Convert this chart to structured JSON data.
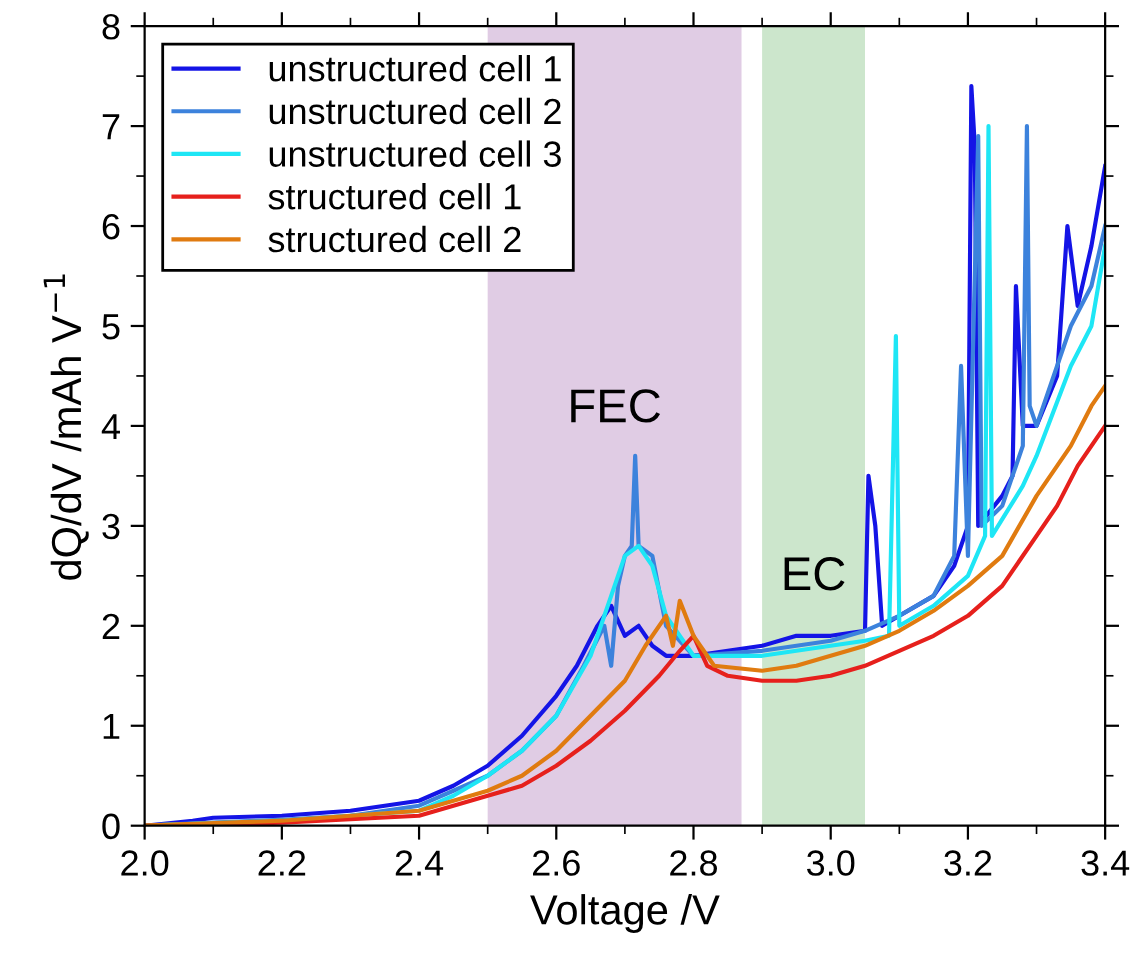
{
  "chart_data": {
    "type": "line",
    "xlabel": "Voltage /V",
    "ylabel": "dQ/dV /mAh V$^{−1}$",
    "xlim": [
      2.0,
      3.4
    ],
    "xticks": [
      {
        "value": 2.0,
        "label": "2.0"
      },
      2.2,
      2.4,
      2.6,
      2.8,
      {
        "value": 3.0,
        "label": "3.0"
      },
      3.2,
      3.4
    ],
    "ylim": [
      0,
      8
    ],
    "yticks": [
      0,
      1,
      2,
      3,
      4,
      5,
      6,
      7,
      8
    ],
    "grid": false,
    "legend": "top left",
    "marker": "none",
    "line_style": "solid",
    "bands": [
      {
        "axis": "x",
        "from": 2.5,
        "to": 2.87,
        "label": "FEC",
        "color": "#e0cce4"
      },
      {
        "axis": "x",
        "from": 2.9,
        "to": 3.05,
        "label": "EC",
        "color": "#cce6cc"
      }
    ],
    "series": [
      {
        "name": "unstructured cell 1",
        "color": "#1414e6",
        "x": [
          2.0,
          2.07,
          2.1,
          2.2,
          2.3,
          2.4,
          2.45,
          2.5,
          2.55,
          2.6,
          2.63,
          2.66,
          2.68,
          2.7,
          2.72,
          2.74,
          2.76,
          2.8,
          2.85,
          2.9,
          2.95,
          3.0,
          3.05,
          3.055,
          3.065,
          3.075,
          3.1,
          3.15,
          3.18,
          3.2,
          3.205,
          3.21,
          3.215,
          3.25,
          3.265,
          3.27,
          3.28,
          3.3,
          3.33,
          3.345,
          3.36,
          3.38,
          3.4
        ],
        "values": [
          0,
          0.05,
          0.08,
          0.1,
          0.15,
          0.25,
          0.4,
          0.6,
          0.9,
          1.3,
          1.6,
          2.0,
          2.2,
          1.9,
          2.0,
          1.8,
          1.7,
          1.7,
          1.75,
          1.8,
          1.9,
          1.9,
          1.95,
          3.5,
          3.0,
          2.0,
          2.1,
          2.3,
          2.6,
          3.0,
          7.4,
          6.8,
          3.0,
          3.3,
          3.5,
          5.4,
          4.0,
          4.0,
          4.5,
          6.0,
          5.2,
          5.8,
          6.6
        ]
      },
      {
        "name": "unstructured cell 2",
        "color": "#3c82dc",
        "x": [
          2.0,
          2.1,
          2.2,
          2.3,
          2.4,
          2.45,
          2.5,
          2.55,
          2.6,
          2.64,
          2.67,
          2.68,
          2.69,
          2.7,
          2.71,
          2.715,
          2.72,
          2.74,
          2.76,
          2.8,
          2.9,
          3.0,
          3.05,
          3.1,
          3.15,
          3.18,
          3.19,
          3.2,
          3.215,
          3.22,
          3.25,
          3.28,
          3.286,
          3.29,
          3.3,
          3.35,
          3.38,
          3.4
        ],
        "values": [
          0,
          0.03,
          0.06,
          0.1,
          0.2,
          0.35,
          0.5,
          0.75,
          1.1,
          1.6,
          2.0,
          1.6,
          2.4,
          2.7,
          2.8,
          3.7,
          2.8,
          2.7,
          2.0,
          1.7,
          1.75,
          1.85,
          1.95,
          2.1,
          2.3,
          2.7,
          4.6,
          2.7,
          6.9,
          3.0,
          3.2,
          3.8,
          7.0,
          4.2,
          4.0,
          5.0,
          5.4,
          6.0
        ]
      },
      {
        "name": "unstructured cell 3",
        "color": "#1ee6f5",
        "x": [
          2.0,
          2.2,
          2.4,
          2.45,
          2.5,
          2.55,
          2.6,
          2.65,
          2.68,
          2.7,
          2.72,
          2.74,
          2.76,
          2.8,
          2.9,
          3.0,
          3.05,
          3.085,
          3.095,
          3.1,
          3.15,
          3.2,
          3.225,
          3.23,
          3.235,
          3.28,
          3.3,
          3.35,
          3.38,
          3.4
        ],
        "values": [
          0,
          0.05,
          0.15,
          0.3,
          0.5,
          0.75,
          1.1,
          1.7,
          2.3,
          2.7,
          2.8,
          2.6,
          2.1,
          1.7,
          1.7,
          1.8,
          1.85,
          1.9,
          4.9,
          2.0,
          2.2,
          2.5,
          2.9,
          7.0,
          2.9,
          3.4,
          3.7,
          4.6,
          5.0,
          5.8
        ]
      },
      {
        "name": "structured cell 1",
        "color": "#e6201c",
        "x": [
          2.0,
          2.2,
          2.4,
          2.5,
          2.55,
          2.6,
          2.65,
          2.7,
          2.75,
          2.78,
          2.8,
          2.82,
          2.85,
          2.9,
          2.95,
          3.0,
          3.05,
          3.1,
          3.15,
          3.2,
          3.25,
          3.3,
          3.33,
          3.36,
          3.4
        ],
        "values": [
          0,
          0.03,
          0.1,
          0.3,
          0.4,
          0.6,
          0.85,
          1.15,
          1.5,
          1.75,
          1.9,
          1.6,
          1.5,
          1.45,
          1.45,
          1.5,
          1.6,
          1.75,
          1.9,
          2.1,
          2.4,
          2.9,
          3.2,
          3.6,
          4.0
        ]
      },
      {
        "name": "structured cell 2",
        "color": "#e07b10",
        "x": [
          2.0,
          2.2,
          2.3,
          2.4,
          2.5,
          2.55,
          2.6,
          2.65,
          2.7,
          2.73,
          2.76,
          2.77,
          2.78,
          2.8,
          2.83,
          2.9,
          2.95,
          3.0,
          3.05,
          3.1,
          3.15,
          3.2,
          3.25,
          3.3,
          3.35,
          3.38,
          3.4
        ],
        "values": [
          0,
          0.05,
          0.1,
          0.15,
          0.35,
          0.5,
          0.75,
          1.1,
          1.45,
          1.8,
          2.1,
          1.8,
          2.25,
          1.9,
          1.6,
          1.55,
          1.6,
          1.7,
          1.8,
          1.95,
          2.15,
          2.4,
          2.7,
          3.3,
          3.8,
          4.2,
          4.4
        ]
      }
    ]
  }
}
